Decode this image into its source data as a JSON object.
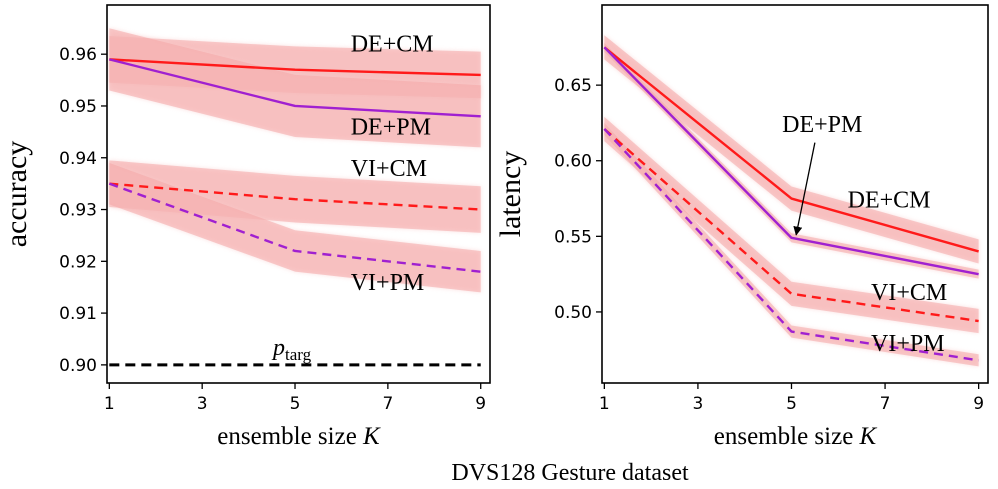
{
  "caption": "DVS128 Gesture dataset",
  "colors": {
    "red": "#ff1a1a",
    "purple": "#a020d0",
    "band": "#f4a6a6",
    "bandLight": "#f9cccc",
    "target": "#000000"
  },
  "chart_data": [
    {
      "type": "line",
      "title": "",
      "xlabel": "ensemble size",
      "xlabel_var": "K",
      "ylabel": "accuracy",
      "xlim": [
        0.95,
        9.2
      ],
      "ylim": [
        0.8965,
        0.9695
      ],
      "xticks": [
        1,
        3,
        5,
        7,
        9
      ],
      "yticks": [
        "0.90",
        "0.91",
        "0.92",
        "0.93",
        "0.94",
        "0.95",
        "0.96"
      ],
      "x": [
        1,
        5,
        9
      ],
      "series": [
        {
          "name": "DE+CM",
          "color": "red",
          "dash": false,
          "values": [
            0.959,
            0.957,
            0.956
          ],
          "band": 0.0045,
          "label_x": 6.2,
          "label_y": 0.9605
        },
        {
          "name": "DE+PM",
          "color": "purple",
          "dash": false,
          "values": [
            0.959,
            0.95,
            0.948
          ],
          "band": 0.006,
          "label_x": 6.2,
          "label_y": 0.9445
        },
        {
          "name": "VI+CM",
          "color": "red",
          "dash": true,
          "values": [
            0.935,
            0.932,
            0.93
          ],
          "band": 0.0045,
          "label_x": 6.2,
          "label_y": 0.9365
        },
        {
          "name": "VI+PM",
          "color": "purple",
          "dash": true,
          "values": [
            0.935,
            0.922,
            0.918
          ],
          "band": 0.004,
          "label_x": 6.2,
          "label_y": 0.9145
        }
      ],
      "target": {
        "label": "p",
        "label_sub": "targ",
        "value": 0.9
      }
    },
    {
      "type": "line",
      "title": "",
      "xlabel": "ensemble size",
      "xlabel_var": "K",
      "ylabel": "latency",
      "xlim": [
        0.95,
        9.2
      ],
      "ylim": [
        0.453,
        0.703
      ],
      "xticks": [
        1,
        3,
        5,
        7,
        9
      ],
      "yticks": [
        "0.50",
        "0.55",
        "0.60",
        "0.65"
      ],
      "x": [
        1,
        5,
        9
      ],
      "series": [
        {
          "name": "DE+CM",
          "color": "red",
          "dash": false,
          "values": [
            0.675,
            0.575,
            0.54
          ],
          "band": 0.008,
          "label_x": 6.2,
          "label_y": 0.569
        },
        {
          "name": "DE+PM",
          "color": "purple",
          "dash": false,
          "values": [
            0.675,
            0.549,
            0.525
          ],
          "band": 0.003,
          "label_x": 4.8,
          "label_y": 0.619
        },
        {
          "name": "VI+CM",
          "color": "red",
          "dash": true,
          "values": [
            0.621,
            0.512,
            0.494
          ],
          "band": 0.008,
          "label_x": 6.7,
          "label_y": 0.508
        },
        {
          "name": "VI+PM",
          "color": "purple",
          "dash": true,
          "values": [
            0.621,
            0.487,
            0.468
          ],
          "band": 0.004,
          "label_x": 6.7,
          "label_y": 0.474
        }
      ],
      "arrow": {
        "from_x": 5.5,
        "from_y": 0.612,
        "to_x": 5.1,
        "to_y": 0.551
      }
    }
  ]
}
